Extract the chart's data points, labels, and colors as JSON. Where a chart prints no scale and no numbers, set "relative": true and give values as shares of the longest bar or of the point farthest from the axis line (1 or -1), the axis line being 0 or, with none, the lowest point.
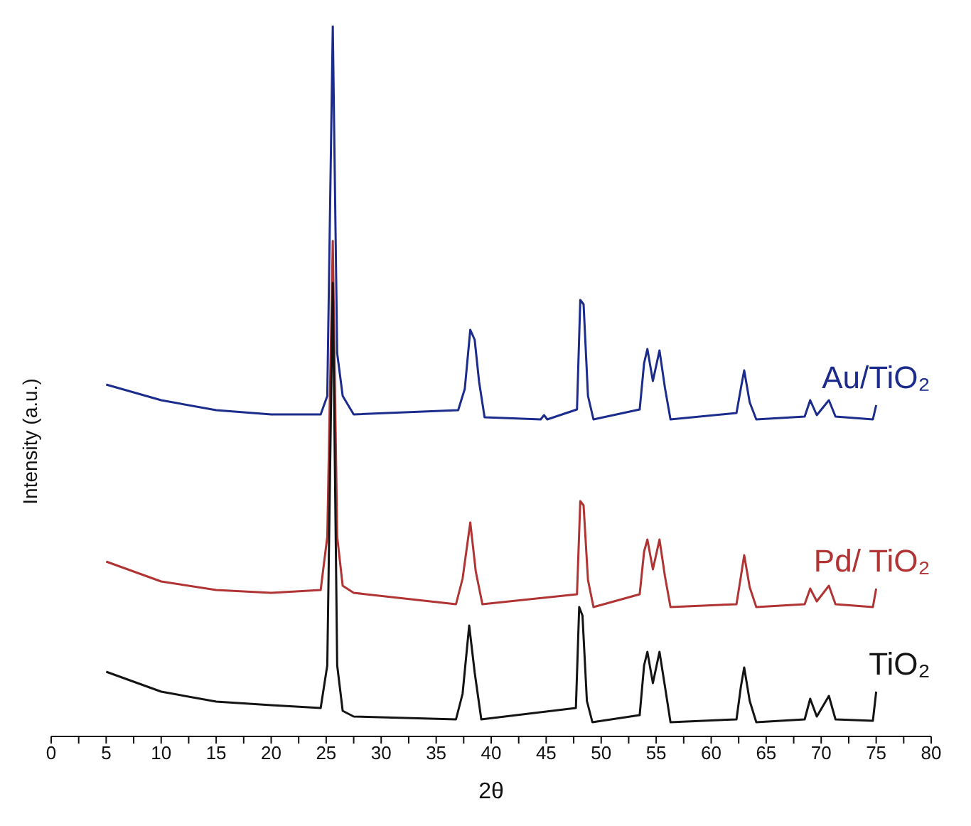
{
  "chart_data": {
    "type": "line",
    "relative": true,
    "xlabel": "2θ",
    "ylabel": "Intensity (a.u.)",
    "marker": "none",
    "xlim": [
      0,
      80
    ],
    "xticks": [
      0,
      {
        "value": 2.5,
        "label": null
      },
      5,
      {
        "value": 7.5,
        "label": null
      },
      10,
      {
        "value": 12.5,
        "label": null
      },
      15,
      {
        "value": 17.5,
        "label": null
      },
      20,
      {
        "value": 22.5,
        "label": null
      },
      25,
      {
        "value": 27.5,
        "label": null
      },
      30,
      {
        "value": 32.5,
        "label": null
      },
      35,
      {
        "value": 37.5,
        "label": null
      },
      40,
      {
        "value": 42.5,
        "label": null
      },
      45,
      {
        "value": 47.5,
        "label": null
      },
      50,
      {
        "value": 52.5,
        "label": null
      },
      55,
      {
        "value": 57.5,
        "label": null
      },
      60,
      {
        "value": 62.5,
        "label": null
      },
      65,
      {
        "value": 67.5,
        "label": null
      },
      70,
      {
        "value": 72.5,
        "label": null
      },
      75,
      {
        "value": 77.5,
        "label": null
      },
      80
    ],
    "series": [
      {
        "name": "Au/TiO₂",
        "color": "#1c2c8c",
        "x": [
          5,
          10,
          15,
          20,
          24.5,
          25.1,
          25.6,
          26.0,
          26.5,
          27.5,
          37.0,
          37.6,
          38.1,
          38.5,
          38.9,
          39.4,
          44.5,
          44.8,
          45.1,
          47.8,
          48.1,
          48.4,
          48.8,
          49.3,
          53.5,
          53.9,
          54.2,
          54.7,
          55.3,
          55.8,
          56.3,
          62.3,
          62.7,
          63.0,
          63.5,
          64.1,
          68.5,
          69.0,
          69.6,
          70.7,
          71.3,
          74.7,
          75
        ],
        "values": [
          0.495,
          0.473,
          0.459,
          0.453,
          0.453,
          0.479,
          1.0,
          0.539,
          0.479,
          0.453,
          0.459,
          0.489,
          0.572,
          0.558,
          0.499,
          0.449,
          0.446,
          0.452,
          0.446,
          0.46,
          0.614,
          0.608,
          0.479,
          0.446,
          0.46,
          0.525,
          0.545,
          0.5,
          0.543,
          0.49,
          0.446,
          0.455,
          0.49,
          0.515,
          0.47,
          0.446,
          0.45,
          0.473,
          0.452,
          0.473,
          0.45,
          0.446,
          0.466
        ]
      },
      {
        "name": "Pd/ TiO₂",
        "color": "#b03434",
        "x": [
          5,
          10,
          15,
          20,
          24.5,
          25.1,
          25.6,
          26.0,
          26.5,
          27.5,
          36.8,
          37.4,
          38.1,
          38.6,
          39.2,
          47.8,
          48.1,
          48.4,
          48.8,
          49.3,
          53.5,
          53.9,
          54.2,
          54.7,
          55.3,
          55.8,
          56.3,
          62.3,
          62.7,
          63.0,
          63.5,
          64.1,
          68.5,
          69.0,
          69.6,
          70.7,
          71.3,
          74.7,
          75
        ],
        "values": [
          0.246,
          0.218,
          0.206,
          0.202,
          0.206,
          0.281,
          0.697,
          0.281,
          0.212,
          0.202,
          0.186,
          0.222,
          0.301,
          0.232,
          0.186,
          0.2,
          0.331,
          0.325,
          0.22,
          0.182,
          0.2,
          0.26,
          0.277,
          0.235,
          0.277,
          0.225,
          0.182,
          0.186,
          0.225,
          0.255,
          0.21,
          0.182,
          0.186,
          0.208,
          0.19,
          0.212,
          0.186,
          0.182,
          0.208
        ]
      },
      {
        "name": "TiO₂",
        "color": "#141414",
        "x": [
          5,
          10,
          15,
          20,
          24.5,
          25.1,
          25.6,
          26.0,
          26.5,
          27.5,
          36.8,
          37.4,
          38.0,
          38.5,
          39.1,
          47.7,
          48.0,
          48.3,
          48.7,
          49.2,
          53.5,
          53.9,
          54.2,
          54.7,
          55.3,
          55.8,
          56.3,
          62.3,
          62.7,
          63.0,
          63.5,
          64.1,
          68.5,
          69.0,
          69.6,
          70.7,
          71.3,
          74.7,
          75
        ],
        "values": [
          0.091,
          0.063,
          0.049,
          0.044,
          0.04,
          0.1,
          0.638,
          0.1,
          0.036,
          0.028,
          0.024,
          0.06,
          0.156,
          0.09,
          0.024,
          0.04,
          0.182,
          0.17,
          0.05,
          0.02,
          0.03,
          0.1,
          0.119,
          0.075,
          0.119,
          0.07,
          0.02,
          0.024,
          0.07,
          0.097,
          0.05,
          0.02,
          0.024,
          0.053,
          0.028,
          0.057,
          0.024,
          0.022,
          0.063
        ]
      }
    ]
  }
}
